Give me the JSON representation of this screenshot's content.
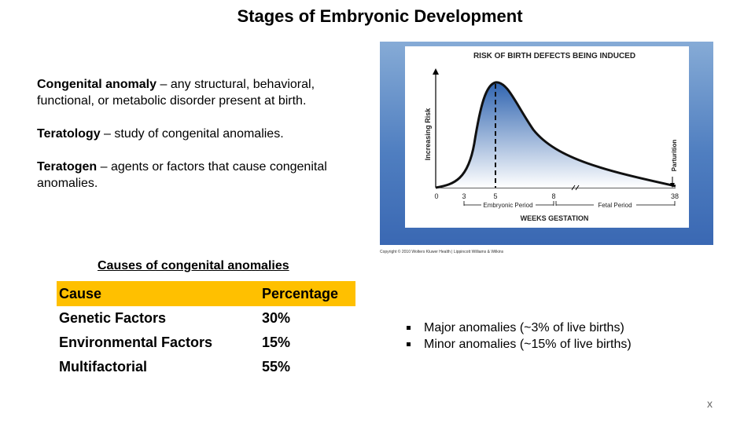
{
  "slide": {
    "title": "Stages of Embryonic Development"
  },
  "definitions": [
    {
      "term": "Congenital anomaly",
      "text": " – any structural, behavioral, functional, or metabolic disorder present at birth."
    },
    {
      "term": "Teratology",
      "text": " – study of congenital anomalies."
    },
    {
      "term": "Teratogen",
      "text": " – agents or factors that cause congenital anomalies."
    }
  ],
  "figure": {
    "title": "RISK OF BIRTH DEFECTS BEING INDUCED",
    "y_label": "Increasing Risk",
    "x_label": "WEEKS GESTATION",
    "ticks": [
      "0",
      "3",
      "5",
      "8",
      "38"
    ],
    "embryonic_period": "Embryonic Period",
    "fetal_period": "Fetal Period",
    "parturition": "Parturition",
    "copyright": "Copyright © 2010 Wolters Kluwer Health | Lippincott Williams & Wilkins"
  },
  "causes_table": {
    "title": "Causes of congenital anomalies",
    "headers": [
      "Cause",
      "Percentage"
    ],
    "rows": [
      [
        "Genetic Factors",
        "30%"
      ],
      [
        "Environmental Factors",
        "15%"
      ],
      [
        "Multifactorial",
        "55%"
      ]
    ]
  },
  "bullets": [
    "Major anomalies (~3% of live births)",
    "Minor anomalies (~15% of live births)"
  ],
  "corner_mark": "x"
}
